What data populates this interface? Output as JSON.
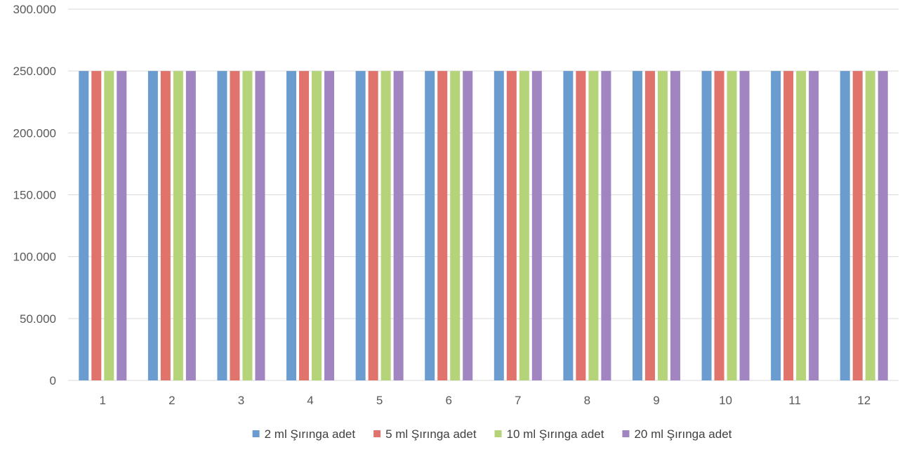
{
  "chart_data": {
    "type": "bar",
    "categories": [
      "1",
      "2",
      "3",
      "4",
      "5",
      "6",
      "7",
      "8",
      "9",
      "10",
      "11",
      "12"
    ],
    "series": [
      {
        "name": "2 ml Şırınga adet",
        "color": "#6A9CD0",
        "values": [
          250000,
          250000,
          250000,
          250000,
          250000,
          250000,
          250000,
          250000,
          250000,
          250000,
          250000,
          250000
        ]
      },
      {
        "name": "5 ml Şırınga adet",
        "color": "#E0736B",
        "values": [
          250000,
          250000,
          250000,
          250000,
          250000,
          250000,
          250000,
          250000,
          250000,
          250000,
          250000,
          250000
        ]
      },
      {
        "name": "10 ml Şırınga adet",
        "color": "#B5D47A",
        "values": [
          250000,
          250000,
          250000,
          250000,
          250000,
          250000,
          250000,
          250000,
          250000,
          250000,
          250000,
          250000
        ]
      },
      {
        "name": "20 ml Şırınga adet",
        "color": "#A085C0",
        "values": [
          250000,
          250000,
          250000,
          250000,
          250000,
          250000,
          250000,
          250000,
          250000,
          250000,
          250000,
          250000
        ]
      }
    ],
    "ylim": [
      0,
      300000
    ],
    "yticks": [
      0,
      50000,
      100000,
      150000,
      200000,
      250000,
      300000
    ],
    "ytick_labels": [
      "0",
      "50.000",
      "100.000",
      "150.000",
      "200.000",
      "250.000",
      "300.000"
    ],
    "grid": true,
    "legend_position": "bottom",
    "gridline_color": "#D9D9D9"
  }
}
